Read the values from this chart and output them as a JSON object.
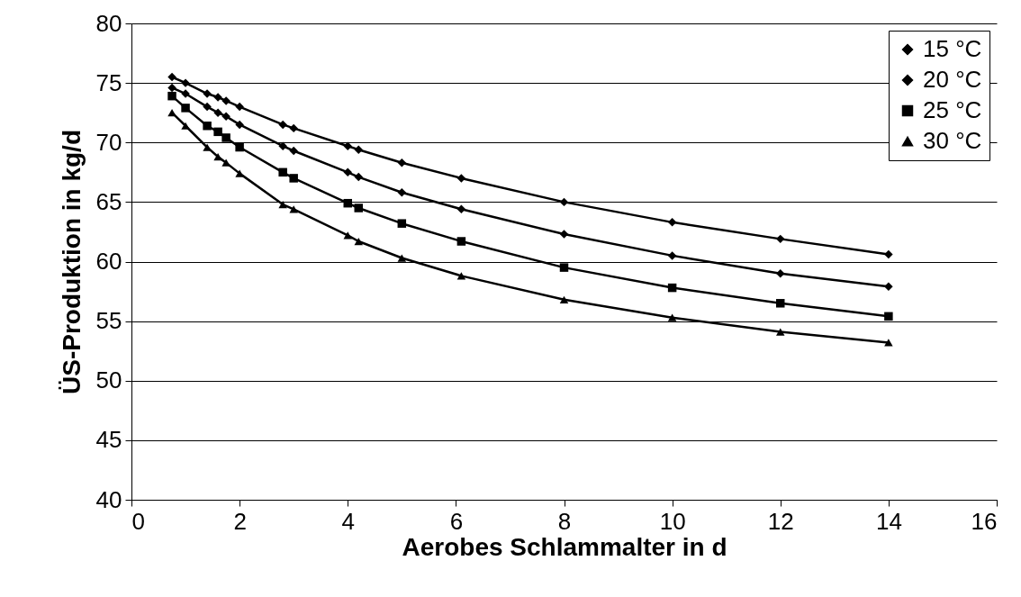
{
  "chart_data": {
    "type": "line",
    "xlabel": "Aerobes Schlammalter in d",
    "ylabel": "ÜS-Produktion in kg/d",
    "x": [
      0.75,
      1,
      1.4,
      1.6,
      1.75,
      2,
      2.8,
      3,
      4,
      4.2,
      5,
      6.1,
      8,
      10,
      12,
      14
    ],
    "series": [
      {
        "name": "15 °C",
        "color": "#000000",
        "marker": "diamond",
        "values": [
          75.5,
          75.0,
          74.1,
          73.8,
          73.5,
          73.0,
          71.5,
          71.2,
          69.7,
          69.4,
          68.3,
          67.0,
          65.0,
          63.3,
          61.9,
          60.6
        ]
      },
      {
        "name": "20 °C",
        "color": "#000000",
        "marker": "diamond",
        "values": [
          74.6,
          74.1,
          73.0,
          72.5,
          72.2,
          71.5,
          69.7,
          69.3,
          67.5,
          67.1,
          65.8,
          64.4,
          62.3,
          60.5,
          59.0,
          57.9
        ]
      },
      {
        "name": "25 °C",
        "color": "#000000",
        "marker": "square",
        "values": [
          73.9,
          72.9,
          71.4,
          70.9,
          70.4,
          69.6,
          67.5,
          67.0,
          64.9,
          64.5,
          63.2,
          61.7,
          59.5,
          57.8,
          56.5,
          55.4
        ]
      },
      {
        "name": "30 °C",
        "color": "#000000",
        "marker": "triangle",
        "values": [
          72.5,
          71.4,
          69.6,
          68.8,
          68.3,
          67.4,
          64.8,
          64.4,
          62.2,
          61.7,
          60.3,
          58.8,
          56.8,
          55.3,
          54.1,
          53.2
        ]
      }
    ],
    "xlim": [
      0,
      16
    ],
    "xticks": [
      0,
      2,
      4,
      6,
      8,
      10,
      12,
      14,
      16
    ],
    "ylim": [
      40,
      80
    ],
    "yticks": [
      40,
      45,
      50,
      55,
      60,
      65,
      70,
      75,
      80
    ],
    "grid": "y",
    "legend": "top right",
    "line_style": "solid"
  }
}
